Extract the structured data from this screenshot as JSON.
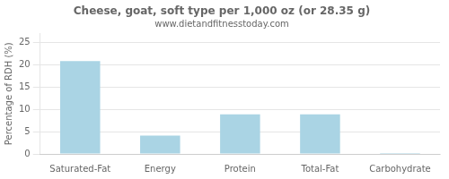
{
  "chart_data": {
    "type": "bar",
    "title": "Cheese, goat, soft type per 1,000 oz (or 28.35 g)",
    "subtitle": "www.dietandfitnesstoday.com",
    "ylabel": "Percentage of RDH (%)",
    "categories": [
      "Saturated-Fat",
      "Energy",
      "Protein",
      "Total-Fat",
      "Carbohydrate"
    ],
    "values": [
      20.8,
      4.1,
      8.9,
      8.9,
      0.2
    ],
    "color": "#aad4e4",
    "ylim": [
      0,
      27
    ],
    "yticks": [
      0,
      5,
      10,
      15,
      20,
      25
    ],
    "grid": true
  }
}
